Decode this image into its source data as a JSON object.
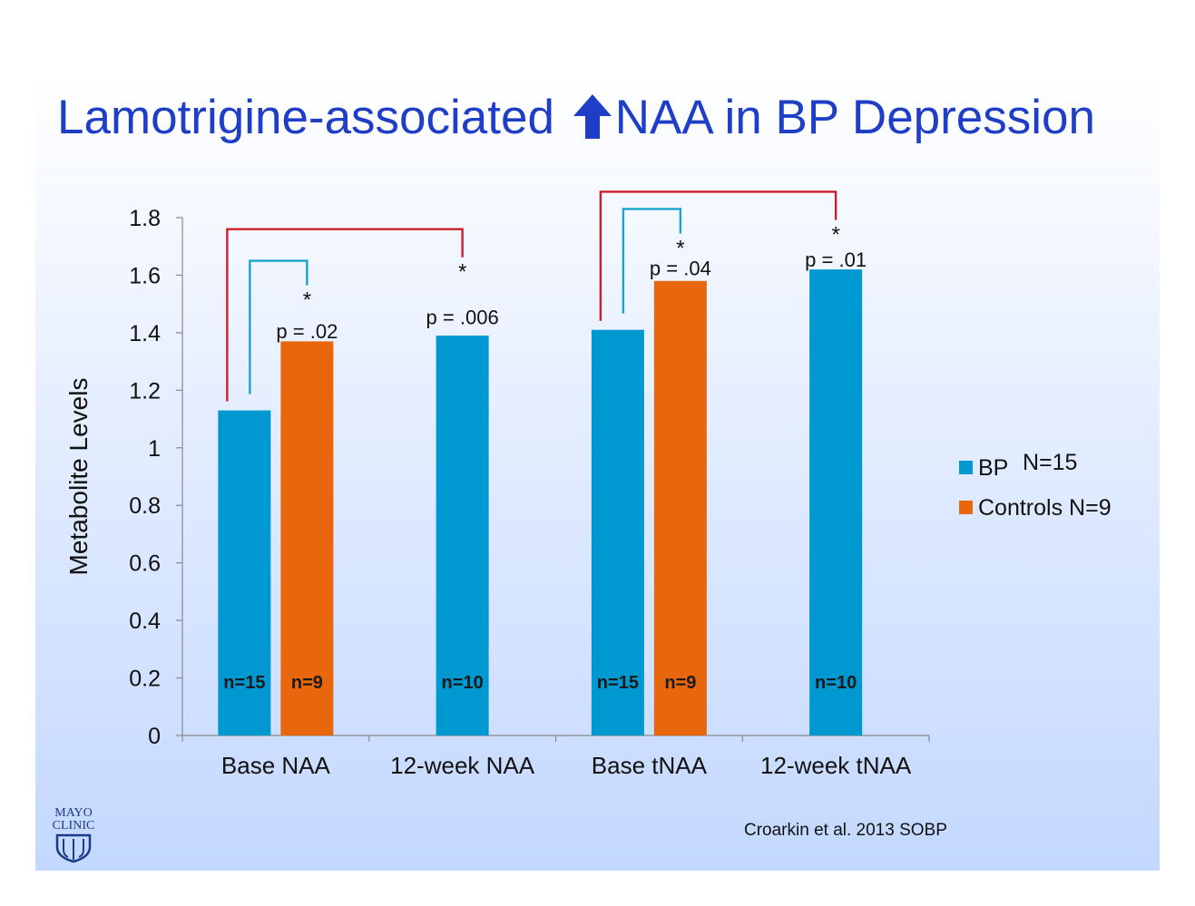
{
  "slide": {
    "title_before": "Lamotrigine-associated",
    "title_arrow_icon": "up-arrow-icon",
    "title_after": "NAA in BP Depression",
    "citation": "Croarkin et al. 2013 SOBP",
    "logo": {
      "line1": "MAYO",
      "line2": "CLINIC",
      "icon": "shield-icon"
    }
  },
  "chart_data": {
    "type": "bar",
    "title": "",
    "xlabel": "",
    "ylabel": "Metabolite Levels",
    "ylim": [
      0,
      1.8
    ],
    "yticks": [
      0,
      0.2,
      0.4,
      0.6,
      0.8,
      1,
      1.2,
      1.4,
      1.6,
      1.8
    ],
    "ytick_labels": [
      "0",
      "0.2",
      "0.4",
      "0.6",
      "0.8",
      "1",
      "1.2",
      "1.4",
      "1.6",
      "1.8"
    ],
    "grid": false,
    "legend_position": "right",
    "categories": [
      "Base NAA",
      "12-week NAA",
      "Base tNAA",
      "12-week tNAA"
    ],
    "series": [
      {
        "name": "BP N=15",
        "color": "#0098d0",
        "values": [
          1.13,
          1.39,
          1.41,
          1.62
        ],
        "n_labels": [
          "n=15",
          "n=10",
          "n=15",
          "n=10"
        ]
      },
      {
        "name": "Controls N=9",
        "color": "#e8670c",
        "values": [
          1.37,
          null,
          1.58,
          null
        ],
        "n_labels": [
          "n=9",
          "",
          "n=9",
          ""
        ]
      }
    ],
    "legend": [
      {
        "label": "BP",
        "suffix": "N=15",
        "color": "#0098d0"
      },
      {
        "label": "Controls N=9",
        "suffix": "",
        "color": "#e8670c"
      }
    ],
    "annotations": [
      {
        "text": "p = .02",
        "star": "*",
        "bracket_color": "#1aa3cc",
        "from": {
          "category": 0,
          "series": 0
        },
        "to": {
          "category": 0,
          "series": 1
        },
        "bracket_top": 1.65,
        "text_y": 1.38
      },
      {
        "text": "p = .006",
        "star": "*",
        "bracket_color": "#cc1f2a",
        "from": {
          "category": 0,
          "series": 0
        },
        "to": {
          "category": 1,
          "series": 0
        },
        "bracket_top": 1.76,
        "text_y": 1.43
      },
      {
        "text": "p = .04",
        "star": "*",
        "bracket_color": "#1aa3cc",
        "from": {
          "category": 2,
          "series": 0
        },
        "to": {
          "category": 2,
          "series": 1
        },
        "bracket_top": 1.83,
        "text_y": 1.6
      },
      {
        "text": "p = .01",
        "star": "*",
        "bracket_color": "#cc1f2a",
        "from": {
          "category": 2,
          "series": 0
        },
        "to": {
          "category": 3,
          "series": 0
        },
        "bracket_top": 1.89,
        "text_y": 1.63
      }
    ]
  }
}
